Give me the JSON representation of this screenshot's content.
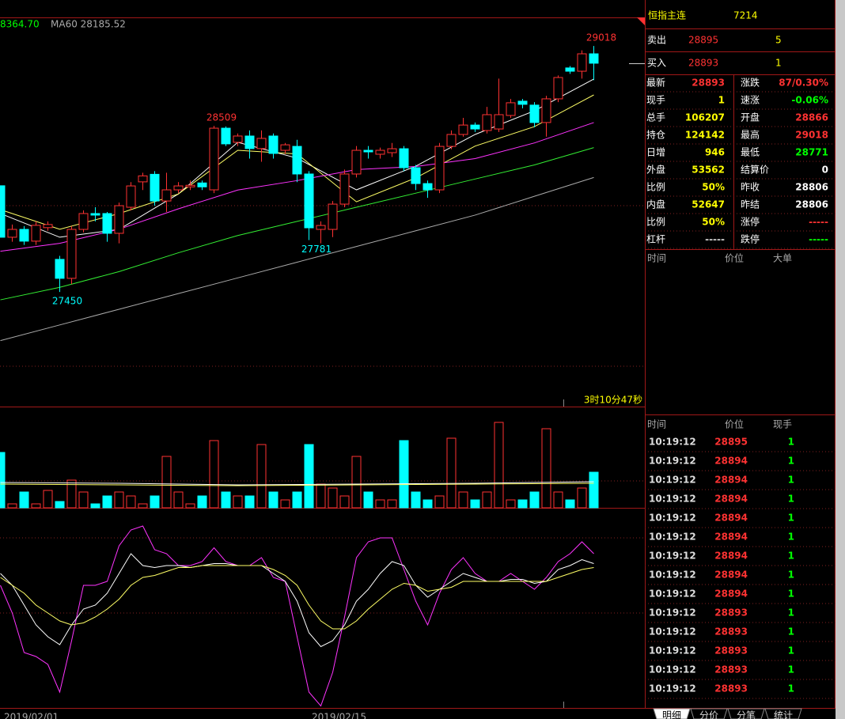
{
  "chart_data": {
    "type": "candlestick",
    "header": {
      "last": "8364.70",
      "ma60": "MA60 28185.52"
    },
    "ylim": [
      26740,
      29200
    ],
    "up_color": "#ff3232",
    "down_color": "#00ffff",
    "candles": [
      {
        "o": 28127,
        "h": 28127,
        "l": 27799,
        "c": 27799
      },
      {
        "o": 27799,
        "h": 27880,
        "l": 27770,
        "c": 27849
      },
      {
        "o": 27849,
        "h": 27870,
        "l": 27750,
        "c": 27774
      },
      {
        "o": 27774,
        "h": 27900,
        "l": 27750,
        "c": 27875
      },
      {
        "o": 27860,
        "h": 27900,
        "l": 27840,
        "c": 27880
      },
      {
        "o": 27658,
        "h": 27680,
        "l": 27450,
        "c": 27537
      },
      {
        "o": 27537,
        "h": 27870,
        "l": 27500,
        "c": 27849
      },
      {
        "o": 27849,
        "h": 27970,
        "l": 27830,
        "c": 27950
      },
      {
        "o": 27950,
        "h": 27990,
        "l": 27900,
        "c": 27940
      },
      {
        "o": 27950,
        "h": 27960,
        "l": 27770,
        "c": 27824
      },
      {
        "o": 27824,
        "h": 28020,
        "l": 27760,
        "c": 28000
      },
      {
        "o": 27990,
        "h": 28150,
        "l": 27970,
        "c": 28126
      },
      {
        "o": 28152,
        "h": 28210,
        "l": 28100,
        "c": 28190
      },
      {
        "o": 28200,
        "h": 28220,
        "l": 28000,
        "c": 28030
      },
      {
        "o": 28030,
        "h": 28210,
        "l": 27960,
        "c": 28101
      },
      {
        "o": 28101,
        "h": 28150,
        "l": 28080,
        "c": 28126
      },
      {
        "o": 28120,
        "h": 28160,
        "l": 28100,
        "c": 28130
      },
      {
        "o": 28145,
        "h": 28160,
        "l": 28100,
        "c": 28120
      },
      {
        "o": 28101,
        "h": 28509,
        "l": 28080,
        "c": 28494
      },
      {
        "o": 28494,
        "h": 28505,
        "l": 28380,
        "c": 28394
      },
      {
        "o": 28404,
        "h": 28460,
        "l": 28380,
        "c": 28444
      },
      {
        "o": 28444,
        "h": 28480,
        "l": 28300,
        "c": 28364
      },
      {
        "o": 28364,
        "h": 28480,
        "l": 28280,
        "c": 28429
      },
      {
        "o": 28444,
        "h": 28460,
        "l": 28300,
        "c": 28333
      },
      {
        "o": 28353,
        "h": 28400,
        "l": 28330,
        "c": 28388
      },
      {
        "o": 28378,
        "h": 28420,
        "l": 28150,
        "c": 28202
      },
      {
        "o": 28202,
        "h": 28220,
        "l": 27781,
        "c": 27859
      },
      {
        "o": 27849,
        "h": 27900,
        "l": 27760,
        "c": 27874
      },
      {
        "o": 27849,
        "h": 28030,
        "l": 27800,
        "c": 28010
      },
      {
        "o": 28010,
        "h": 28230,
        "l": 27990,
        "c": 28202
      },
      {
        "o": 28202,
        "h": 28380,
        "l": 28180,
        "c": 28353
      },
      {
        "o": 28353,
        "h": 28380,
        "l": 28300,
        "c": 28343
      },
      {
        "o": 28328,
        "h": 28370,
        "l": 28300,
        "c": 28353
      },
      {
        "o": 28338,
        "h": 28400,
        "l": 28310,
        "c": 28363
      },
      {
        "o": 28363,
        "h": 28380,
        "l": 28220,
        "c": 28242
      },
      {
        "o": 28242,
        "h": 28260,
        "l": 28100,
        "c": 28141
      },
      {
        "o": 28141,
        "h": 28160,
        "l": 28050,
        "c": 28101
      },
      {
        "o": 28101,
        "h": 28400,
        "l": 28080,
        "c": 28378
      },
      {
        "o": 28378,
        "h": 28480,
        "l": 28360,
        "c": 28454
      },
      {
        "o": 28454,
        "h": 28560,
        "l": 28440,
        "c": 28514
      },
      {
        "o": 28514,
        "h": 28530,
        "l": 28470,
        "c": 28489
      },
      {
        "o": 28479,
        "h": 28630,
        "l": 28460,
        "c": 28580
      },
      {
        "o": 28489,
        "h": 28810,
        "l": 28470,
        "c": 28580
      },
      {
        "o": 28575,
        "h": 28680,
        "l": 28560,
        "c": 28656
      },
      {
        "o": 28666,
        "h": 28680,
        "l": 28620,
        "c": 28646
      },
      {
        "o": 28641,
        "h": 28660,
        "l": 28500,
        "c": 28530
      },
      {
        "o": 28530,
        "h": 28700,
        "l": 28440,
        "c": 28681
      },
      {
        "o": 28681,
        "h": 28830,
        "l": 28660,
        "c": 28817
      },
      {
        "o": 28878,
        "h": 28890,
        "l": 28840,
        "c": 28857
      },
      {
        "o": 28857,
        "h": 28990,
        "l": 28810,
        "c": 28968
      },
      {
        "o": 28968,
        "h": 29018,
        "l": 28800,
        "c": 28908
      }
    ],
    "annotations": [
      29018,
      28509,
      27781,
      27450
    ],
    "moving_averages": [
      {
        "color": "#ffffff",
        "x": [
          0,
          5,
          10,
          15,
          20,
          25,
          30,
          35,
          40,
          45,
          50
        ],
        "values": [
          27950,
          27799,
          27849,
          28075,
          28404,
          28303,
          28101,
          28252,
          28454,
          28605,
          28807
        ]
      },
      {
        "color": "#ffff66",
        "x": [
          0,
          5,
          10,
          15,
          20,
          25,
          30,
          35,
          40,
          45,
          50
        ],
        "values": [
          27975,
          27850,
          27950,
          28075,
          28353,
          28330,
          28025,
          28177,
          28380,
          28504,
          28706
        ]
      },
      {
        "color": "#ff33ff",
        "x": [
          0,
          5,
          10,
          15,
          20,
          25,
          30,
          35,
          40,
          45,
          50
        ],
        "values": [
          27710,
          27760,
          27850,
          27980,
          28100,
          28160,
          28230,
          28250,
          28300,
          28400,
          28530
        ]
      },
      {
        "color": "#33ee33",
        "x": [
          0,
          5,
          10,
          15,
          20,
          25,
          30,
          35,
          40,
          45,
          50
        ],
        "values": [
          27400,
          27480,
          27580,
          27700,
          27810,
          27900,
          27990,
          28080,
          28170,
          28260,
          28370
        ]
      },
      {
        "color": "#aaaaaa",
        "x": [
          0,
          5,
          10,
          15,
          20,
          25,
          30,
          35,
          40,
          45,
          50
        ],
        "values": [
          27140,
          27240,
          27340,
          27440,
          27540,
          27640,
          27740,
          27840,
          27940,
          28060,
          28180
        ]
      }
    ],
    "countdown": "3时10分47秒",
    "dates": [
      "2019/02/01",
      "2019/02/15"
    ],
    "volume": {
      "ylim": [
        0,
        127
      ],
      "values": [
        70,
        5,
        20,
        5,
        22,
        8,
        35,
        20,
        5,
        15,
        20,
        15,
        5,
        15,
        65,
        20,
        5,
        15,
        85,
        20,
        15,
        15,
        80,
        20,
        10,
        20,
        80,
        30,
        25,
        15,
        65,
        20,
        10,
        10,
        85,
        20,
        10,
        15,
        88,
        20,
        10,
        20,
        108,
        10,
        10,
        20,
        100,
        20,
        10,
        25,
        45
      ],
      "ma": [
        {
          "color": "#ffffff",
          "x": [
            0,
            10,
            20,
            30,
            40,
            50
          ],
          "values": [
            32,
            31,
            29,
            30,
            31,
            33
          ]
        },
        {
          "color": "#ffff66",
          "x": [
            0,
            10,
            20,
            30,
            40,
            50
          ],
          "values": [
            30,
            29,
            28,
            29,
            30,
            31
          ]
        }
      ]
    },
    "kdj": {
      "ylim": [
        0,
        100
      ],
      "series": [
        {
          "color": "#ff33ff",
          "values": [
            62,
            48,
            28,
            26,
            22,
            8,
            34,
            62,
            62,
            64,
            82,
            90,
            92,
            80,
            78,
            72,
            72,
            74,
            81,
            74,
            72,
            72,
            76,
            66,
            64,
            36,
            8,
            1,
            18,
            46,
            76,
            84,
            86,
            86,
            70,
            54,
            42,
            58,
            70,
            76,
            68,
            64,
            64,
            68,
            64,
            60,
            66,
            74,
            78,
            84,
            78
          ]
        },
        {
          "color": "#ffffff",
          "values": [
            68,
            62,
            52,
            42,
            36,
            32,
            42,
            50,
            52,
            58,
            68,
            78,
            72,
            71,
            72,
            72,
            71,
            72,
            73,
            73,
            72,
            72,
            72,
            68,
            64,
            54,
            38,
            31,
            34,
            42,
            54,
            60,
            68,
            74,
            72,
            62,
            56,
            60,
            64,
            68,
            66,
            64,
            64,
            65,
            65,
            63,
            64,
            70,
            72,
            75,
            73
          ]
        },
        {
          "color": "#ffff66",
          "values": [
            66,
            62,
            58,
            52,
            48,
            44,
            42,
            43,
            46,
            50,
            55,
            62,
            66,
            67,
            69,
            71,
            71,
            72,
            72,
            72,
            72,
            72,
            72,
            70,
            67,
            62,
            52,
            44,
            40,
            40,
            44,
            50,
            55,
            60,
            63,
            62,
            59,
            60,
            61,
            64,
            64,
            64,
            64,
            64,
            64,
            64,
            64,
            66,
            68,
            70,
            71
          ]
        }
      ]
    }
  },
  "quote": {
    "title": "恒指主连",
    "code": "7214",
    "ask": {
      "label": "卖出",
      "price": 28895,
      "qty": 5
    },
    "bid": {
      "label": "买入",
      "price": 28893,
      "qty": 1
    },
    "stats": [
      [
        {
          "label": "最新",
          "value": 28893,
          "color": "#ff3232"
        },
        {
          "label": "涨跌",
          "value": "87/0.30%",
          "color": "#ff3232"
        }
      ],
      [
        {
          "label": "现手",
          "value": 1,
          "color": "#ffff00"
        },
        {
          "label": "速涨",
          "value": "-0.06%",
          "color": "#00ff00"
        }
      ],
      [
        {
          "label": "总手",
          "value": 106207,
          "color": "#ffff00"
        },
        {
          "label": "开盘",
          "value": 28866,
          "color": "#ff3232"
        }
      ],
      [
        {
          "label": "持仓",
          "value": 124142,
          "color": "#ffff00"
        },
        {
          "label": "最高",
          "value": 29018,
          "color": "#ff3232"
        }
      ],
      [
        {
          "label": "日增",
          "value": 946,
          "color": "#ffff00"
        },
        {
          "label": "最低",
          "value": 28771,
          "color": "#00ff00"
        }
      ],
      [
        {
          "label": "外盘",
          "value": 53562,
          "color": "#ffff00"
        },
        {
          "label": "结算价",
          "value": 0,
          "color": "#ffffff"
        }
      ],
      [
        {
          "label": "比例",
          "value": "50%",
          "color": "#ffff00"
        },
        {
          "label": "昨收",
          "value": 28806,
          "color": "#ffffff"
        }
      ],
      [
        {
          "label": "内盘",
          "value": 52647,
          "color": "#ffff00"
        },
        {
          "label": "昨结",
          "value": 28806,
          "color": "#ffffff"
        }
      ],
      [
        {
          "label": "比例",
          "value": "50%",
          "color": "#ffff00"
        },
        {
          "label": "涨停",
          "value": "-----",
          "color": "#ff3232"
        }
      ],
      [
        {
          "label": "杠杆",
          "value": "-----",
          "color": "#cccccc"
        },
        {
          "label": "跌停",
          "value": "-----",
          "color": "#00ff00"
        }
      ]
    ],
    "big_orders": {
      "headers": [
        "时间",
        "价位",
        "大单"
      ]
    },
    "trades": {
      "headers": [
        "时间",
        "价位",
        "现手"
      ],
      "rows": [
        [
          "10:19:12",
          28895,
          1
        ],
        [
          "10:19:12",
          28894,
          1
        ],
        [
          "10:19:12",
          28894,
          1
        ],
        [
          "10:19:12",
          28894,
          1
        ],
        [
          "10:19:12",
          28894,
          1
        ],
        [
          "10:19:12",
          28894,
          1
        ],
        [
          "10:19:12",
          28894,
          1
        ],
        [
          "10:19:12",
          28894,
          1
        ],
        [
          "10:19:12",
          28894,
          1
        ],
        [
          "10:19:12",
          28893,
          1
        ],
        [
          "10:19:12",
          28893,
          1
        ],
        [
          "10:19:12",
          28893,
          1
        ],
        [
          "10:19:12",
          28893,
          1
        ],
        [
          "10:19:12",
          28893,
          1
        ]
      ]
    },
    "tabs": [
      "明细",
      "分价",
      "分笔",
      "统计"
    ]
  }
}
